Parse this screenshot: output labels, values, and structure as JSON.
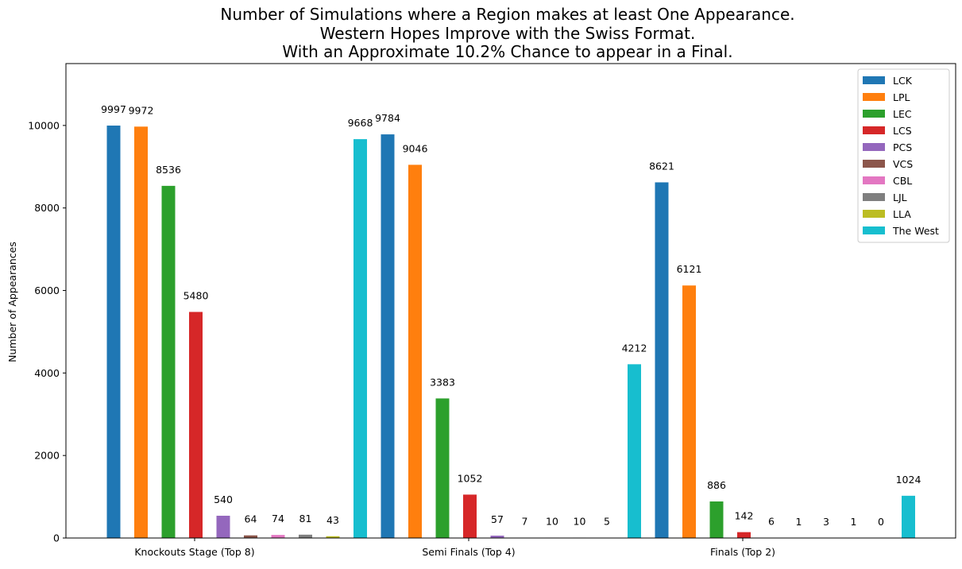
{
  "chart_data": {
    "type": "bar",
    "title_lines": [
      "Number of Simulations where a Region makes at least One Appearance.",
      "Western Hopes Improve with the Swiss Format.",
      "With an Approximate 10.2% Chance to appear in a Final."
    ],
    "xlabel": "",
    "ylabel": "Number of Appearances",
    "ylim": [
      0,
      11500
    ],
    "yticks": [
      0,
      2000,
      4000,
      6000,
      8000,
      10000
    ],
    "categories": [
      "Knockouts Stage (Top 8)",
      "Semi Finals (Top 4)",
      "Finals (Top 2)"
    ],
    "grid": false,
    "legend_position": "top-right",
    "series": [
      {
        "name": "LCK",
        "color": "#1f77b4",
        "values": [
          9997,
          9784,
          8621
        ]
      },
      {
        "name": "LPL",
        "color": "#ff7f0e",
        "values": [
          9972,
          9046,
          6121
        ]
      },
      {
        "name": "LEC",
        "color": "#2ca02c",
        "values": [
          8536,
          3383,
          886
        ]
      },
      {
        "name": "LCS",
        "color": "#d62728",
        "values": [
          5480,
          1052,
          142
        ]
      },
      {
        "name": "PCS",
        "color": "#9467bd",
        "values": [
          540,
          57,
          6
        ]
      },
      {
        "name": "VCS",
        "color": "#8c564b",
        "values": [
          64,
          7,
          1
        ]
      },
      {
        "name": "CBL",
        "color": "#e377c2",
        "values": [
          74,
          10,
          3
        ]
      },
      {
        "name": "LJL",
        "color": "#7f7f7f",
        "values": [
          81,
          10,
          1
        ]
      },
      {
        "name": "LLA",
        "color": "#bcbd22",
        "values": [
          43,
          5,
          0
        ]
      },
      {
        "name": "The West",
        "color": "#17becf",
        "values": [
          9668,
          4212,
          1024
        ]
      }
    ]
  }
}
